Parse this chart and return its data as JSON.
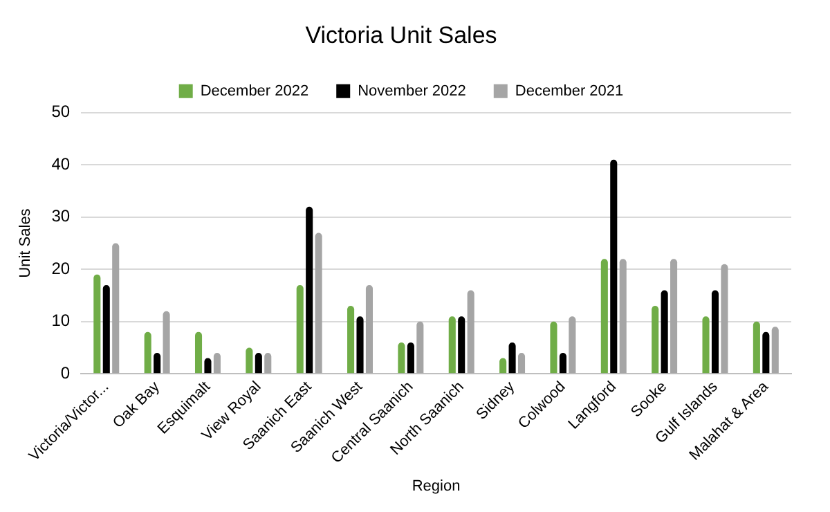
{
  "chart_data": {
    "type": "bar",
    "title": "Victoria Unit Sales",
    "xlabel": "Region",
    "ylabel": "Unit Sales",
    "categories": [
      "Victoria/Victor...",
      "Oak Bay",
      "Esquimalt",
      "View Royal",
      "Saanich East",
      "Saanich West",
      "Central Saanich",
      "North Saanich",
      "Sidney",
      "Colwood",
      "Langford",
      "Sooke",
      "Gulf Islands",
      "Malahat & Area"
    ],
    "series": [
      {
        "name": "December 2022",
        "color": "#70ad47",
        "values": [
          19,
          8,
          8,
          5,
          17,
          13,
          6,
          11,
          3,
          10,
          22,
          13,
          11,
          10
        ]
      },
      {
        "name": "November 2022",
        "color": "#000000",
        "values": [
          17,
          4,
          3,
          4,
          32,
          11,
          6,
          11,
          6,
          4,
          41,
          16,
          16,
          8
        ]
      },
      {
        "name": "December 2021",
        "color": "#a5a5a5",
        "values": [
          25,
          12,
          4,
          4,
          27,
          17,
          10,
          16,
          4,
          11,
          22,
          22,
          21,
          9
        ]
      }
    ],
    "ylim": [
      0,
      50
    ],
    "yticks": [
      0,
      10,
      20,
      30,
      40,
      50
    ],
    "grid": "y",
    "legend": "top"
  }
}
